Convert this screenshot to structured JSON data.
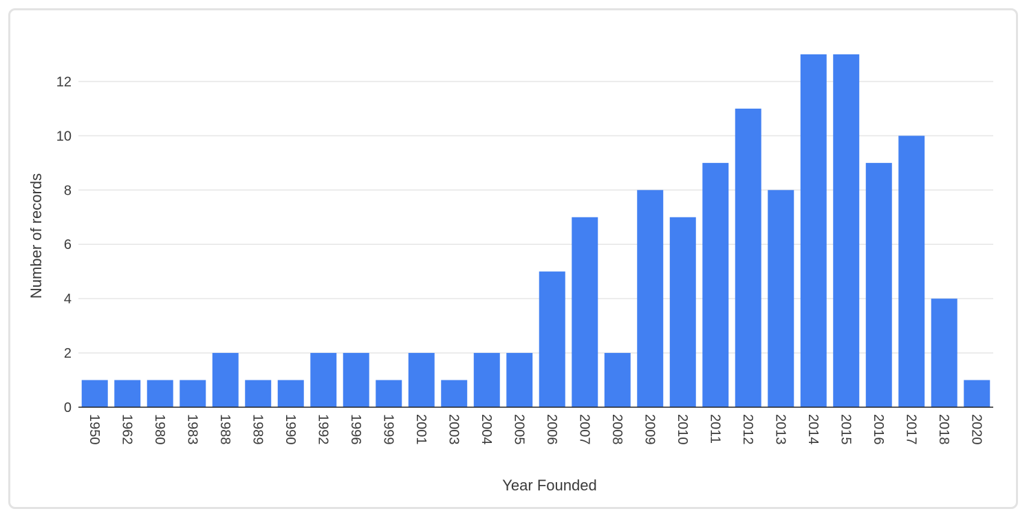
{
  "chart_data": {
    "type": "bar",
    "title": "",
    "xlabel": "Year Founded",
    "ylabel": "Number of records",
    "categories": [
      "1950",
      "1962",
      "1980",
      "1983",
      "1988",
      "1989",
      "1990",
      "1992",
      "1996",
      "1999",
      "2001",
      "2003",
      "2004",
      "2005",
      "2006",
      "2007",
      "2008",
      "2009",
      "2010",
      "2011",
      "2012",
      "2013",
      "2014",
      "2015",
      "2016",
      "2017",
      "2018",
      "2020"
    ],
    "values": [
      1,
      1,
      1,
      1,
      2,
      1,
      1,
      2,
      2,
      1,
      2,
      1,
      2,
      2,
      5,
      7,
      2,
      8,
      7,
      9,
      11,
      8,
      13,
      13,
      9,
      10,
      4,
      1
    ],
    "ylim": [
      0,
      13
    ],
    "yticks": [
      0,
      2,
      4,
      6,
      8,
      10,
      12
    ],
    "grid": true,
    "colors": {
      "bar": "#4280f2",
      "grid": "#e6e6e6",
      "axis": "#222222"
    }
  }
}
